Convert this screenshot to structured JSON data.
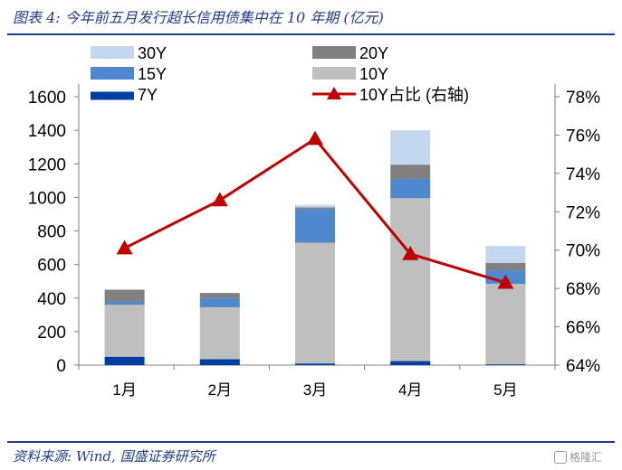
{
  "header": {
    "title": "图表 4:  今年前五月发行超长信用债集中在 10 年期 (亿元)"
  },
  "footer": {
    "source": "资料来源: Wind, 国盛证券研究所",
    "watermark": "格隆汇"
  },
  "chart_data": {
    "type": "bar",
    "stacked": true,
    "categories": [
      "1月",
      "2月",
      "3月",
      "4月",
      "5月"
    ],
    "series": [
      {
        "name": "7Y",
        "color": "#003ea3",
        "values": [
          50,
          35,
          10,
          25,
          5
        ]
      },
      {
        "name": "10Y",
        "color": "#bfbfbf",
        "values": [
          310,
          310,
          720,
          970,
          480
        ]
      },
      {
        "name": "15Y",
        "color": "#4f88cf",
        "values": [
          20,
          55,
          200,
          115,
          80
        ]
      },
      {
        "name": "20Y",
        "color": "#808080",
        "values": [
          70,
          30,
          10,
          85,
          45
        ]
      },
      {
        "name": "30Y",
        "color": "#c5d7ef",
        "values": [
          0,
          0,
          15,
          205,
          100
        ]
      }
    ],
    "line_series": {
      "name": "10Y占比 (右轴)",
      "color": "#c00000",
      "axis": "right",
      "values": [
        70.1,
        72.6,
        75.8,
        69.8,
        68.3
      ]
    },
    "y_left": {
      "ylim": [
        0,
        1600
      ],
      "ticks": [
        "0",
        "200",
        "400",
        "600",
        "800",
        "1000",
        "1200",
        "1400",
        "1600"
      ]
    },
    "y_right": {
      "ylim": [
        64,
        78
      ],
      "ticks": [
        "64%",
        "66%",
        "68%",
        "70%",
        "72%",
        "74%",
        "76%",
        "78%"
      ]
    },
    "legend_order": [
      "30Y",
      "20Y",
      "15Y",
      "10Y",
      "7Y",
      "10Y占比 (右轴)"
    ],
    "legend_position": "top",
    "grid": false
  }
}
